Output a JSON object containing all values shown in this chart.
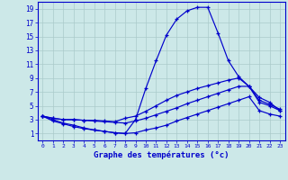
{
  "xlabel": "Graphe des températures (°c)",
  "background_color": "#cce8e8",
  "grid_color": "#aacaca",
  "line_color": "#0000cc",
  "xlim": [
    -0.5,
    23.5
  ],
  "ylim": [
    0,
    20
  ],
  "xticks": [
    0,
    1,
    2,
    3,
    4,
    5,
    6,
    7,
    8,
    9,
    10,
    11,
    12,
    13,
    14,
    15,
    16,
    17,
    18,
    19,
    20,
    21,
    22,
    23
  ],
  "yticks": [
    1,
    3,
    5,
    7,
    9,
    11,
    13,
    15,
    17,
    19
  ],
  "hours": [
    0,
    1,
    2,
    3,
    4,
    5,
    6,
    7,
    8,
    9,
    10,
    11,
    12,
    13,
    14,
    15,
    16,
    17,
    18,
    19,
    20,
    21,
    22,
    23
  ],
  "max_temp": [
    3.5,
    2.8,
    2.4,
    2.0,
    1.7,
    1.5,
    1.3,
    1.1,
    1.0,
    3.0,
    7.5,
    11.5,
    15.2,
    17.5,
    18.7,
    19.2,
    19.2,
    15.5,
    11.5,
    9.2,
    7.8,
    5.5,
    5.0,
    4.3
  ],
  "upper_temp": [
    3.5,
    3.2,
    3.0,
    3.0,
    2.9,
    2.9,
    2.8,
    2.7,
    3.2,
    3.5,
    4.2,
    5.0,
    5.8,
    6.5,
    7.0,
    7.5,
    7.9,
    8.3,
    8.7,
    9.0,
    7.8,
    6.2,
    5.5,
    4.3
  ],
  "lower_temp": [
    3.5,
    3.2,
    3.0,
    3.0,
    2.9,
    2.8,
    2.7,
    2.6,
    2.5,
    2.8,
    3.2,
    3.7,
    4.2,
    4.7,
    5.3,
    5.8,
    6.3,
    6.8,
    7.3,
    7.8,
    7.8,
    5.8,
    5.2,
    4.5
  ],
  "min_temp": [
    3.5,
    3.0,
    2.5,
    2.2,
    1.8,
    1.5,
    1.3,
    1.1,
    1.0,
    1.1,
    1.5,
    1.8,
    2.2,
    2.8,
    3.3,
    3.8,
    4.3,
    4.8,
    5.3,
    5.8,
    6.3,
    4.3,
    3.8,
    3.5
  ]
}
